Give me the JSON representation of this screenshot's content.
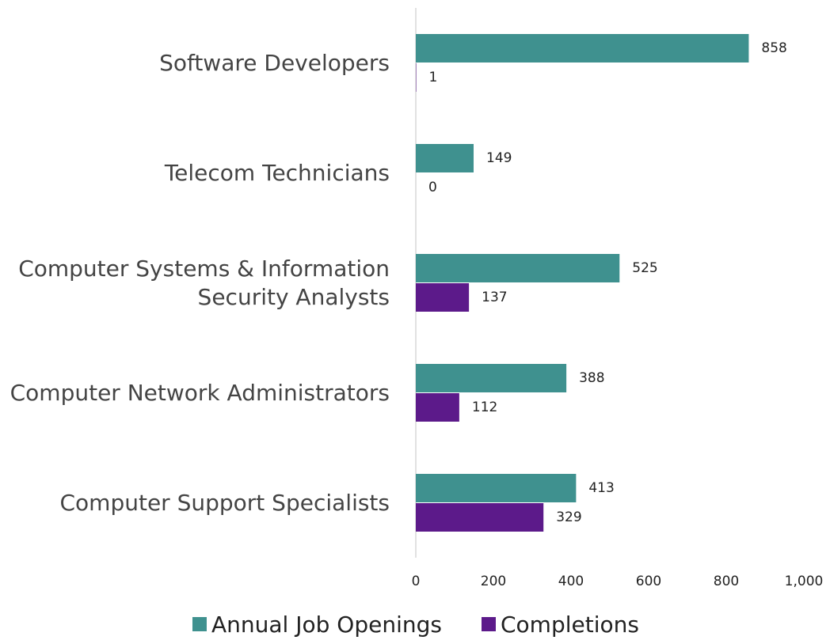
{
  "chart_data": {
    "type": "barh",
    "categories": [
      "Software Developers",
      "Telecom Technicians",
      "Computer Systems & Information Security Analysts",
      "Computer Network Administrators",
      "Computer Support Specialists"
    ],
    "series": [
      {
        "name": "Annual Job Openings",
        "color": "#3f918f",
        "values": [
          858,
          149,
          525,
          388,
          413
        ]
      },
      {
        "name": "Completions",
        "color": "#5c1a8a",
        "values": [
          1,
          0,
          137,
          112,
          329
        ]
      }
    ],
    "xlim": [
      0,
      1000
    ],
    "xticks": [
      0,
      200,
      400,
      600,
      800,
      {
        "value": 1000,
        "label": "1,000"
      }
    ],
    "legend": "bottom"
  }
}
